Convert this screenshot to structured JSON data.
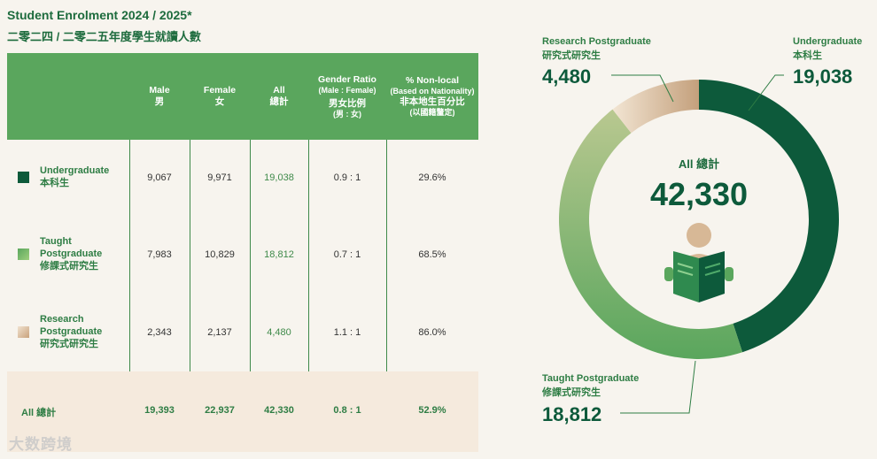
{
  "title_en": "Student Enrolment 2024 / 2025*",
  "title_zh": "二零二四 / 二零二五年度學生就讀人數",
  "table": {
    "headers": [
      {
        "en": "Male",
        "zh": "男"
      },
      {
        "en": "Female",
        "zh": "女"
      },
      {
        "en": "All",
        "zh": "總計"
      },
      {
        "en": "Gender Ratio",
        "en_sub": "(Male : Female)",
        "zh": "男女比例",
        "zh_sub": "(男 : 女)"
      },
      {
        "en": "% Non-local",
        "en_sub": "(Based on Nationality)",
        "zh": "非本地生百分比",
        "zh_sub": "(以國籍釐定)"
      }
    ],
    "rows": [
      {
        "label_en": "Undergraduate",
        "label_zh": "本科生",
        "color": "#0d5a3b",
        "male": "9,067",
        "female": "9,971",
        "all": "19,038",
        "ratio": "0.9 : 1",
        "nonlocal": "29.6%"
      },
      {
        "label_en": "Taught Postgraduate",
        "label_zh": "修課式研究生",
        "color": "#7fb865",
        "male": "7,983",
        "female": "10,829",
        "all": "18,812",
        "ratio": "0.7 : 1",
        "nonlocal": "68.5%"
      },
      {
        "label_en": "Research Postgraduate",
        "label_zh": "研究式研究生",
        "color": "#d7b896",
        "male": "2,343",
        "female": "2,137",
        "all": "4,480",
        "ratio": "1.1 : 1",
        "nonlocal": "86.0%"
      }
    ],
    "total": {
      "label": "All 總計",
      "male": "19,393",
      "female": "22,937",
      "all": "42,330",
      "ratio": "0.8 : 1",
      "nonlocal": "52.9%"
    }
  },
  "watermark": "大数跨境",
  "chart_data": {
    "type": "pie",
    "subtype": "donut",
    "center_label": "All 總計",
    "center_value": "42,330",
    "total": 42330,
    "slices": [
      {
        "name_en": "Undergraduate",
        "name_zh": "本科生",
        "value": 19038,
        "value_label": "19,038",
        "color": "#0d5a3b"
      },
      {
        "name_en": "Taught Postgraduate",
        "name_zh": "修課式研究生",
        "value": 18812,
        "value_label": "18,812",
        "color": "#8dbf6d"
      },
      {
        "name_en": "Research Postgraduate",
        "name_zh": "研究式研究生",
        "value": 4480,
        "value_label": "4,480",
        "color": "#d7b896"
      }
    ]
  }
}
